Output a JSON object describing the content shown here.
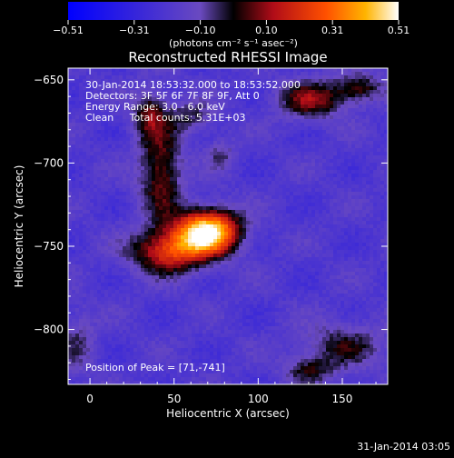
{
  "chart_data": {
    "type": "heatmap",
    "title": "Reconstructed RHESSI Image",
    "xlabel": "Heliocentric X (arcsec)",
    "ylabel": "Heliocentric Y (arcsec)",
    "xlim": [
      -13,
      177
    ],
    "ylim": [
      -833,
      -643
    ],
    "xticks": [
      0,
      50,
      100,
      150
    ],
    "yticks": [
      -650,
      -700,
      -750,
      -800
    ],
    "x_tick_labels": [
      "0",
      "50",
      "100",
      "150"
    ],
    "y_tick_labels": [
      "−650",
      "−700",
      "−750",
      "−800"
    ],
    "colorbar": {
      "ticks": [
        "−0.51",
        "−0.31",
        "−0.10",
        "0.10",
        "0.31",
        "0.51"
      ],
      "range": [
        -0.51,
        0.51
      ],
      "units_label": "(photons cm⁻² s⁻¹ asec⁻²)",
      "colors": [
        "#0000ff",
        "#3e2fd0",
        "#6a4ac0",
        "#000000",
        "#c0141a",
        "#ff5a00",
        "#ffc000",
        "#ffffff"
      ]
    },
    "annotations": [
      "30-Jan-2014 18:53:32.000 to 18:53:52.000",
      "Detectors: 3F 5F 6F 7F 8F 9F, Att 0",
      "Energy Range: 3.0 - 6.0 keV",
      "Clean     Total counts: 5.31E+03"
    ],
    "peak_label": "Position of Peak = [71,-741]",
    "peak": [
      71,
      -741
    ],
    "sources": [
      {
        "x": 70,
        "y": -741,
        "sx": 13,
        "sy": 9,
        "amp": 0.55
      },
      {
        "x": 48,
        "y": -753,
        "sx": 16,
        "sy": 9,
        "amp": 0.32
      },
      {
        "x": 42,
        "y": -705,
        "sx": 9,
        "sy": 20,
        "amp": 0.22
      },
      {
        "x": 35,
        "y": -670,
        "sx": 7,
        "sy": 10,
        "amp": 0.18
      },
      {
        "x": 60,
        "y": -672,
        "sx": 10,
        "sy": 7,
        "amp": 0.12
      },
      {
        "x": 132,
        "y": -662,
        "sx": 14,
        "sy": 8,
        "amp": 0.22
      },
      {
        "x": 160,
        "y": -655,
        "sx": 10,
        "sy": 6,
        "amp": 0.18
      },
      {
        "x": 78,
        "y": -695,
        "sx": 6,
        "sy": 7,
        "amp": 0.1
      },
      {
        "x": 150,
        "y": -810,
        "sx": 18,
        "sy": 10,
        "amp": 0.14
      },
      {
        "x": 130,
        "y": -825,
        "sx": 10,
        "sy": 6,
        "amp": 0.14
      },
      {
        "x": -8,
        "y": -808,
        "sx": 8,
        "sy": 14,
        "amp": 0.1
      }
    ],
    "background_level": -0.2
  },
  "footer": {
    "timestamp": "31-Jan-2014 03:05"
  }
}
